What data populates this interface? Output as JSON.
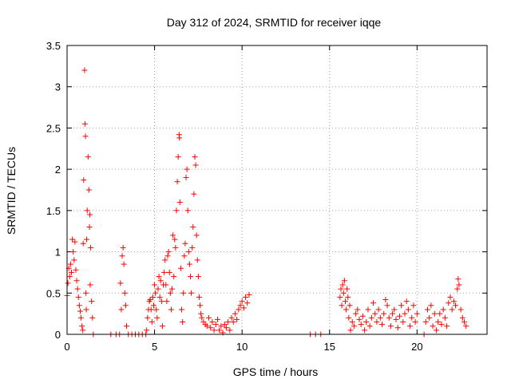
{
  "chart_data": {
    "type": "scatter",
    "title": "Day 312 of 2024, SRMTID for receiver iqqe",
    "xlabel": "GPS time / hours",
    "ylabel": "SRMTID / TECUs",
    "xlim": [
      0,
      24
    ],
    "ylim": [
      0,
      3.5
    ],
    "x_ticks": [
      0,
      5,
      10,
      15,
      20
    ],
    "y_ticks": [
      0,
      0.5,
      1,
      1.5,
      2,
      2.5,
      3,
      3.5
    ],
    "x_tick_labels": [
      "0",
      "5",
      "10",
      "15",
      "20"
    ],
    "y_tick_labels": [
      "0",
      "0.5",
      "1",
      "1.5",
      "2",
      "2.5",
      "3",
      "3.5"
    ],
    "grid": true,
    "marker": "+",
    "series": [
      {
        "name": "SRMTID",
        "color": "#ff0000",
        "points": [
          [
            0.0,
            0.47
          ],
          [
            0.05,
            0.62
          ],
          [
            0.1,
            0.8
          ],
          [
            0.15,
            0.7
          ],
          [
            0.2,
            0.85
          ],
          [
            0.25,
            0.75
          ],
          [
            0.3,
            1.15
          ],
          [
            0.35,
            1.0
          ],
          [
            0.4,
            0.9
          ],
          [
            0.45,
            1.12
          ],
          [
            0.5,
            0.78
          ],
          [
            0.55,
            0.65
          ],
          [
            0.6,
            0.55
          ],
          [
            0.65,
            0.45
          ],
          [
            0.7,
            0.35
          ],
          [
            0.75,
            0.28
          ],
          [
            0.8,
            0.2
          ],
          [
            0.85,
            0.1
          ],
          [
            0.9,
            0.05
          ],
          [
            0.92,
            1.1
          ],
          [
            0.95,
            1.87
          ],
          [
            1.0,
            3.2
          ],
          [
            1.02,
            2.55
          ],
          [
            1.05,
            2.4
          ],
          [
            1.08,
            0.5
          ],
          [
            1.1,
            0.3
          ],
          [
            1.12,
            1.15
          ],
          [
            1.15,
            1.5
          ],
          [
            1.2,
            2.15
          ],
          [
            1.25,
            1.75
          ],
          [
            1.28,
            1.3
          ],
          [
            1.3,
            1.45
          ],
          [
            1.32,
            0.6
          ],
          [
            1.35,
            1.05
          ],
          [
            1.4,
            0.4
          ],
          [
            1.45,
            0.2
          ],
          [
            1.5,
            0.0
          ],
          [
            2.5,
            0.0
          ],
          [
            2.8,
            0.0
          ],
          [
            3.0,
            0.0
          ],
          [
            3.05,
            0.62
          ],
          [
            3.1,
            0.3
          ],
          [
            3.15,
            0.95
          ],
          [
            3.2,
            1.05
          ],
          [
            3.25,
            0.85
          ],
          [
            3.3,
            0.5
          ],
          [
            3.35,
            0.35
          ],
          [
            3.4,
            0.1
          ],
          [
            3.5,
            0.0
          ],
          [
            3.7,
            0.0
          ],
          [
            3.9,
            0.0
          ],
          [
            4.1,
            0.0
          ],
          [
            4.3,
            0.0
          ],
          [
            4.5,
            0.0
          ],
          [
            4.55,
            0.05
          ],
          [
            4.6,
            0.2
          ],
          [
            4.65,
            0.3
          ],
          [
            4.7,
            0.4
          ],
          [
            4.75,
            0.42
          ],
          [
            4.8,
            0.3
          ],
          [
            4.85,
            0.15
          ],
          [
            4.9,
            0.45
          ],
          [
            4.95,
            0.35
          ],
          [
            5.0,
            0.6
          ],
          [
            5.05,
            0.5
          ],
          [
            5.1,
            0.3
          ],
          [
            5.15,
            0.2
          ],
          [
            5.2,
            0.55
          ],
          [
            5.25,
            0.7
          ],
          [
            5.3,
            0.45
          ],
          [
            5.35,
            0.65
          ],
          [
            5.4,
            0.4
          ],
          [
            5.45,
            0.1
          ],
          [
            5.5,
            0.6
          ],
          [
            5.55,
            0.75
          ],
          [
            5.6,
            0.9
          ],
          [
            5.65,
            0.6
          ],
          [
            5.7,
            0.4
          ],
          [
            5.75,
            0.95
          ],
          [
            5.8,
            1.0
          ],
          [
            5.85,
            0.75
          ],
          [
            5.9,
            0.5
          ],
          [
            5.95,
            0.3
          ],
          [
            6.0,
            0.55
          ],
          [
            6.05,
            1.2
          ],
          [
            6.1,
            0.7
          ],
          [
            6.15,
            1.15
          ],
          [
            6.2,
            1.05
          ],
          [
            6.25,
            1.5
          ],
          [
            6.3,
            1.85
          ],
          [
            6.35,
            2.15
          ],
          [
            6.4,
            2.42
          ],
          [
            6.42,
            2.38
          ],
          [
            6.45,
            1.6
          ],
          [
            6.5,
            0.8
          ],
          [
            6.55,
            0.3
          ],
          [
            6.6,
            0.15
          ],
          [
            6.65,
            0.5
          ],
          [
            6.7,
            0.95
          ],
          [
            6.75,
            1.1
          ],
          [
            6.8,
            1.9
          ],
          [
            6.85,
            2.0
          ],
          [
            6.9,
            1.5
          ],
          [
            6.95,
            1.0
          ],
          [
            7.0,
            0.85
          ],
          [
            7.05,
            0.7
          ],
          [
            7.1,
            0.5
          ],
          [
            7.15,
            1.05
          ],
          [
            7.2,
            1.3
          ],
          [
            7.25,
            1.7
          ],
          [
            7.3,
            2.15
          ],
          [
            7.35,
            2.05
          ],
          [
            7.4,
            1.2
          ],
          [
            7.45,
            0.9
          ],
          [
            7.5,
            0.7
          ],
          [
            7.55,
            0.45
          ],
          [
            7.6,
            0.35
          ],
          [
            7.65,
            0.25
          ],
          [
            7.7,
            0.2
          ],
          [
            7.8,
            0.15
          ],
          [
            7.9,
            0.12
          ],
          [
            8.0,
            0.1
          ],
          [
            8.1,
            0.2
          ],
          [
            8.2,
            0.08
          ],
          [
            8.3,
            0.15
          ],
          [
            8.4,
            0.05
          ],
          [
            8.5,
            0.12
          ],
          [
            8.6,
            0.18
          ],
          [
            8.7,
            0.05
          ],
          [
            8.8,
            0.1
          ],
          [
            8.9,
            0.02
          ],
          [
            9.0,
            0.12
          ],
          [
            9.1,
            0.08
          ],
          [
            9.2,
            0.15
          ],
          [
            9.3,
            0.05
          ],
          [
            9.4,
            0.2
          ],
          [
            9.5,
            0.15
          ],
          [
            9.6,
            0.25
          ],
          [
            9.7,
            0.18
          ],
          [
            9.8,
            0.3
          ],
          [
            9.9,
            0.35
          ],
          [
            10.0,
            0.4
          ],
          [
            10.1,
            0.32
          ],
          [
            10.2,
            0.45
          ],
          [
            10.3,
            0.38
          ],
          [
            10.4,
            0.48
          ],
          [
            13.9,
            0.0
          ],
          [
            14.2,
            0.0
          ],
          [
            14.5,
            0.0
          ],
          [
            15.6,
            0.45
          ],
          [
            15.65,
            0.55
          ],
          [
            15.7,
            0.35
          ],
          [
            15.75,
            0.6
          ],
          [
            15.8,
            0.5
          ],
          [
            15.85,
            0.65
          ],
          [
            15.9,
            0.4
          ],
          [
            15.95,
            0.3
          ],
          [
            16.0,
            0.55
          ],
          [
            16.05,
            0.45
          ],
          [
            16.1,
            0.2
          ],
          [
            16.15,
            0.35
          ],
          [
            16.2,
            0.05
          ],
          [
            16.3,
            0.15
          ],
          [
            16.4,
            0.1
          ],
          [
            16.5,
            0.25
          ],
          [
            16.6,
            0.3
          ],
          [
            16.7,
            0.18
          ],
          [
            16.8,
            0.12
          ],
          [
            16.9,
            0.22
          ],
          [
            17.0,
            0.05
          ],
          [
            17.1,
            0.15
          ],
          [
            17.2,
            0.3
          ],
          [
            17.3,
            0.1
          ],
          [
            17.4,
            0.2
          ],
          [
            17.5,
            0.38
          ],
          [
            17.6,
            0.25
          ],
          [
            17.7,
            0.15
          ],
          [
            17.8,
            0.3
          ],
          [
            17.9,
            0.2
          ],
          [
            18.0,
            0.12
          ],
          [
            18.1,
            0.25
          ],
          [
            18.2,
            0.42
          ],
          [
            18.3,
            0.35
          ],
          [
            18.4,
            0.2
          ],
          [
            18.5,
            0.1
          ],
          [
            18.6,
            0.25
          ],
          [
            18.7,
            0.3
          ],
          [
            18.8,
            0.18
          ],
          [
            18.9,
            0.08
          ],
          [
            19.0,
            0.22
          ],
          [
            19.1,
            0.35
          ],
          [
            19.2,
            0.15
          ],
          [
            19.3,
            0.25
          ],
          [
            19.4,
            0.4
          ],
          [
            19.5,
            0.3
          ],
          [
            19.6,
            0.1
          ],
          [
            19.7,
            0.2
          ],
          [
            19.8,
            0.35
          ],
          [
            19.9,
            0.15
          ],
          [
            20.0,
            0.25
          ],
          [
            20.4,
            0.0
          ],
          [
            20.5,
            0.15
          ],
          [
            20.6,
            0.3
          ],
          [
            20.7,
            0.2
          ],
          [
            20.8,
            0.35
          ],
          [
            20.9,
            0.1
          ],
          [
            21.0,
            0.25
          ],
          [
            21.1,
            0.05
          ],
          [
            21.2,
            0.15
          ],
          [
            21.3,
            0.25
          ],
          [
            21.4,
            0.12
          ],
          [
            21.5,
            0.3
          ],
          [
            21.6,
            0.2
          ],
          [
            21.7,
            0.1
          ],
          [
            21.8,
            0.38
          ],
          [
            21.9,
            0.45
          ],
          [
            22.0,
            0.3
          ],
          [
            22.1,
            0.4
          ],
          [
            22.2,
            0.35
          ],
          [
            22.3,
            0.55
          ],
          [
            22.35,
            0.67
          ],
          [
            22.4,
            0.6
          ],
          [
            22.5,
            0.3
          ],
          [
            22.6,
            0.2
          ],
          [
            22.7,
            0.15
          ],
          [
            22.8,
            0.1
          ]
        ]
      }
    ]
  }
}
